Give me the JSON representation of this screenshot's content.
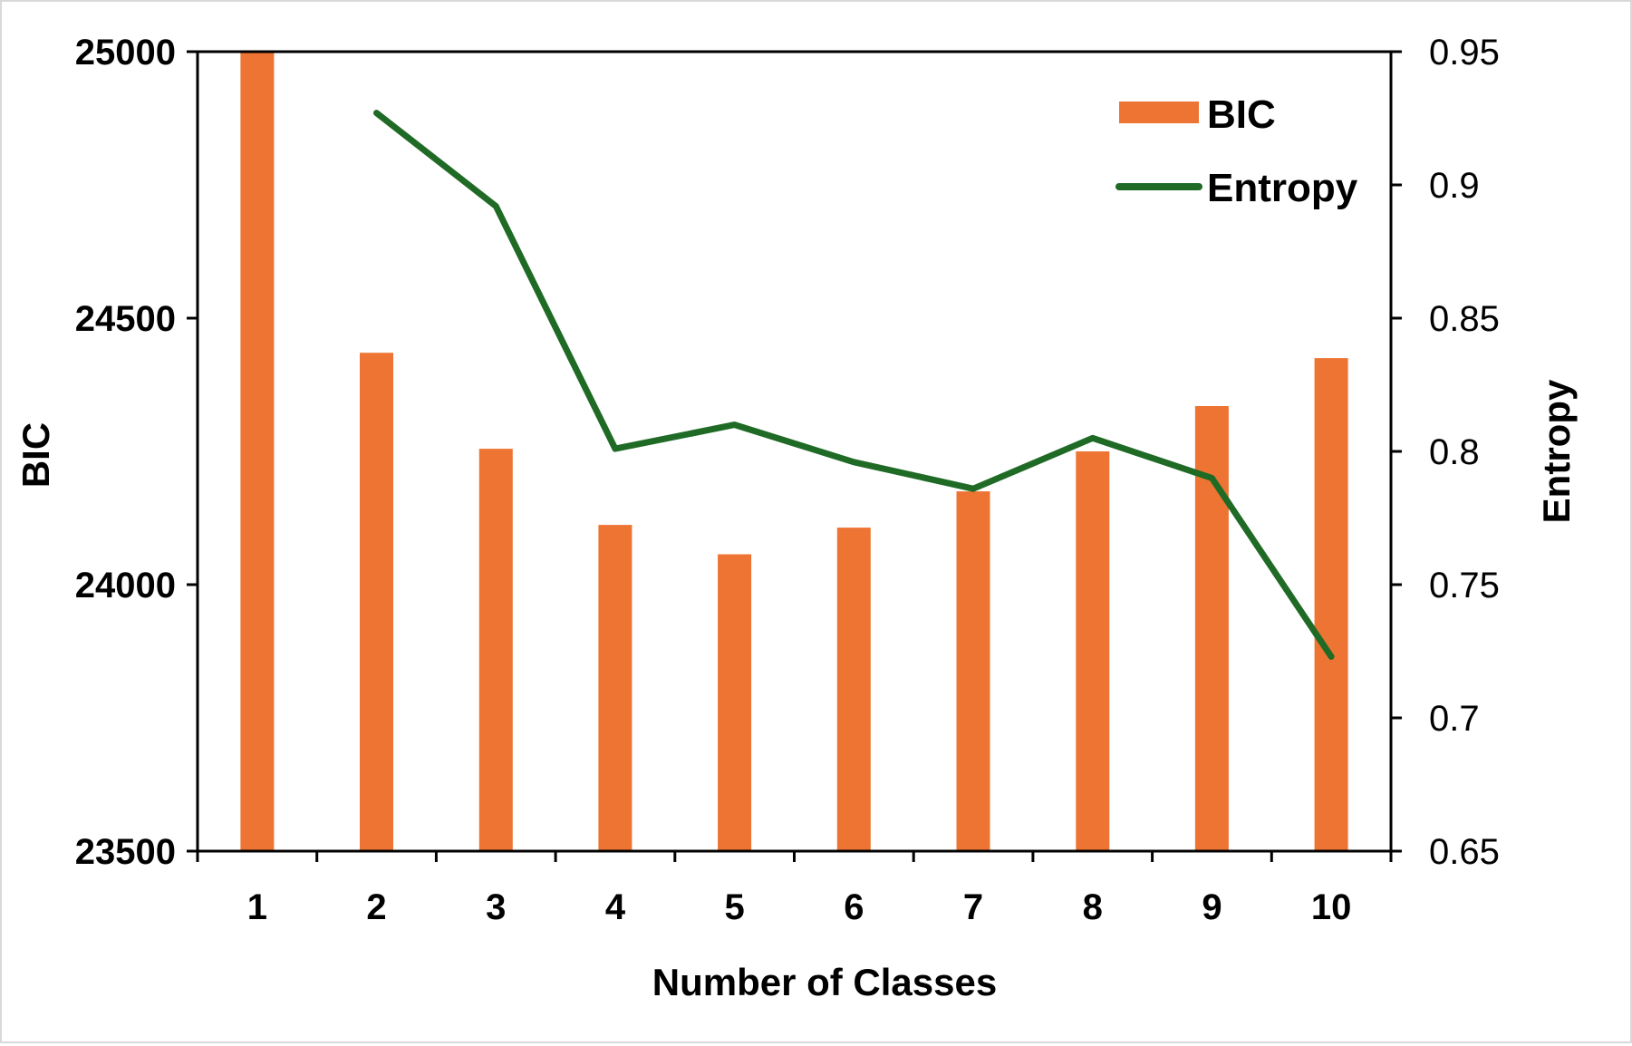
{
  "chart_data": {
    "type": "bar",
    "categories": [
      "1",
      "2",
      "3",
      "4",
      "5",
      "6",
      "7",
      "8",
      "9",
      "10"
    ],
    "series": [
      {
        "name": "BIC",
        "type": "bar",
        "axis": "left",
        "color": "#ED7433",
        "values": [
          25000,
          24435,
          24255,
          24112,
          24057,
          24107,
          24175,
          24250,
          24335,
          24425
        ]
      },
      {
        "name": "Entropy",
        "type": "line",
        "axis": "right",
        "color": "#1F6B26",
        "values": [
          null,
          0.927,
          0.892,
          0.801,
          0.81,
          0.796,
          0.786,
          0.805,
          0.79,
          0.723
        ]
      }
    ],
    "xlabel": "Number of Classes",
    "ylabel": "BIC",
    "y2label": "Entropy",
    "ylim": [
      23500,
      25000
    ],
    "y2lim": [
      0.65,
      0.95
    ],
    "yticks": [
      "23500",
      "24000",
      "24500",
      "25000"
    ],
    "y2ticks": [
      "0.65",
      "0.7",
      "0.75",
      "0.8",
      "0.85",
      "0.9",
      "0.95"
    ],
    "legend": [
      "BIC",
      "Entropy"
    ],
    "legend_position": "top-right",
    "grid": false
  }
}
